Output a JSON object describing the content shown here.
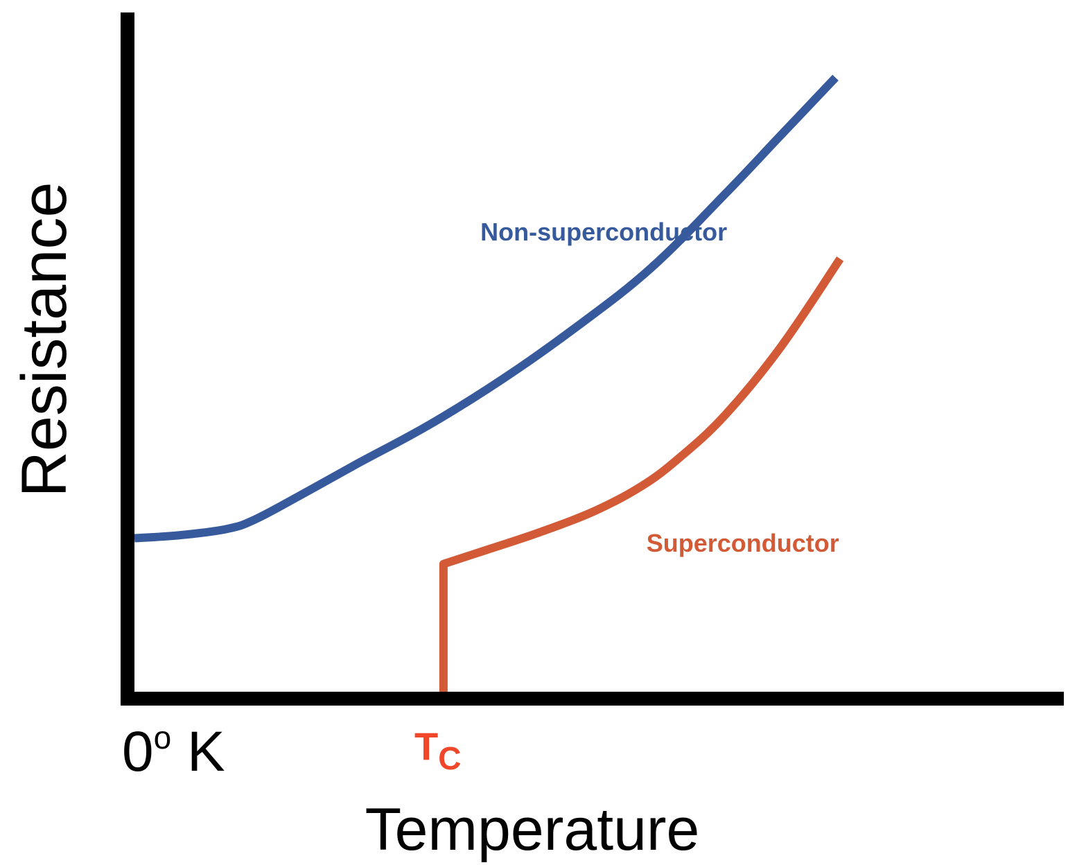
{
  "chart_data": {
    "type": "line",
    "title": "",
    "xlabel": "Temperature",
    "ylabel": "Resistance",
    "xlim": [
      0,
      100
    ],
    "ylim": [
      0,
      100
    ],
    "grid": false,
    "legend": "none",
    "x_tick_labels": [
      {
        "label": "0",
        "superscript": "o",
        "suffix": " K",
        "x": 0,
        "color": "#000000"
      },
      {
        "label": "T",
        "subscript": "C",
        "x": 33.5,
        "color": "#f0462a"
      }
    ],
    "series": [
      {
        "name": "Non-superconductor",
        "color": "#375a9c",
        "label_anchor": {
          "x": 37.5,
          "y": 73.5
        },
        "x": [
          0,
          5,
          10,
          13,
          18,
          24,
          32,
          40,
          48,
          56,
          64,
          70,
          76
        ],
        "y": [
          25,
          25.5,
          26.5,
          28,
          32,
          37,
          43.5,
          51,
          59.5,
          69,
          81,
          90.5,
          100
        ]
      },
      {
        "name": "Superconductor",
        "color": "#d35a37",
        "label_anchor": {
          "x": 55.5,
          "y": 22.8
        },
        "x": [
          33.5,
          33.5,
          33.5,
          38,
          44,
          50,
          55,
          59,
          64,
          70,
          76.5
        ],
        "y": [
          0,
          14,
          20.8,
          23,
          26,
          29.5,
          33.5,
          38,
          45,
          56,
          70.5
        ]
      }
    ]
  }
}
